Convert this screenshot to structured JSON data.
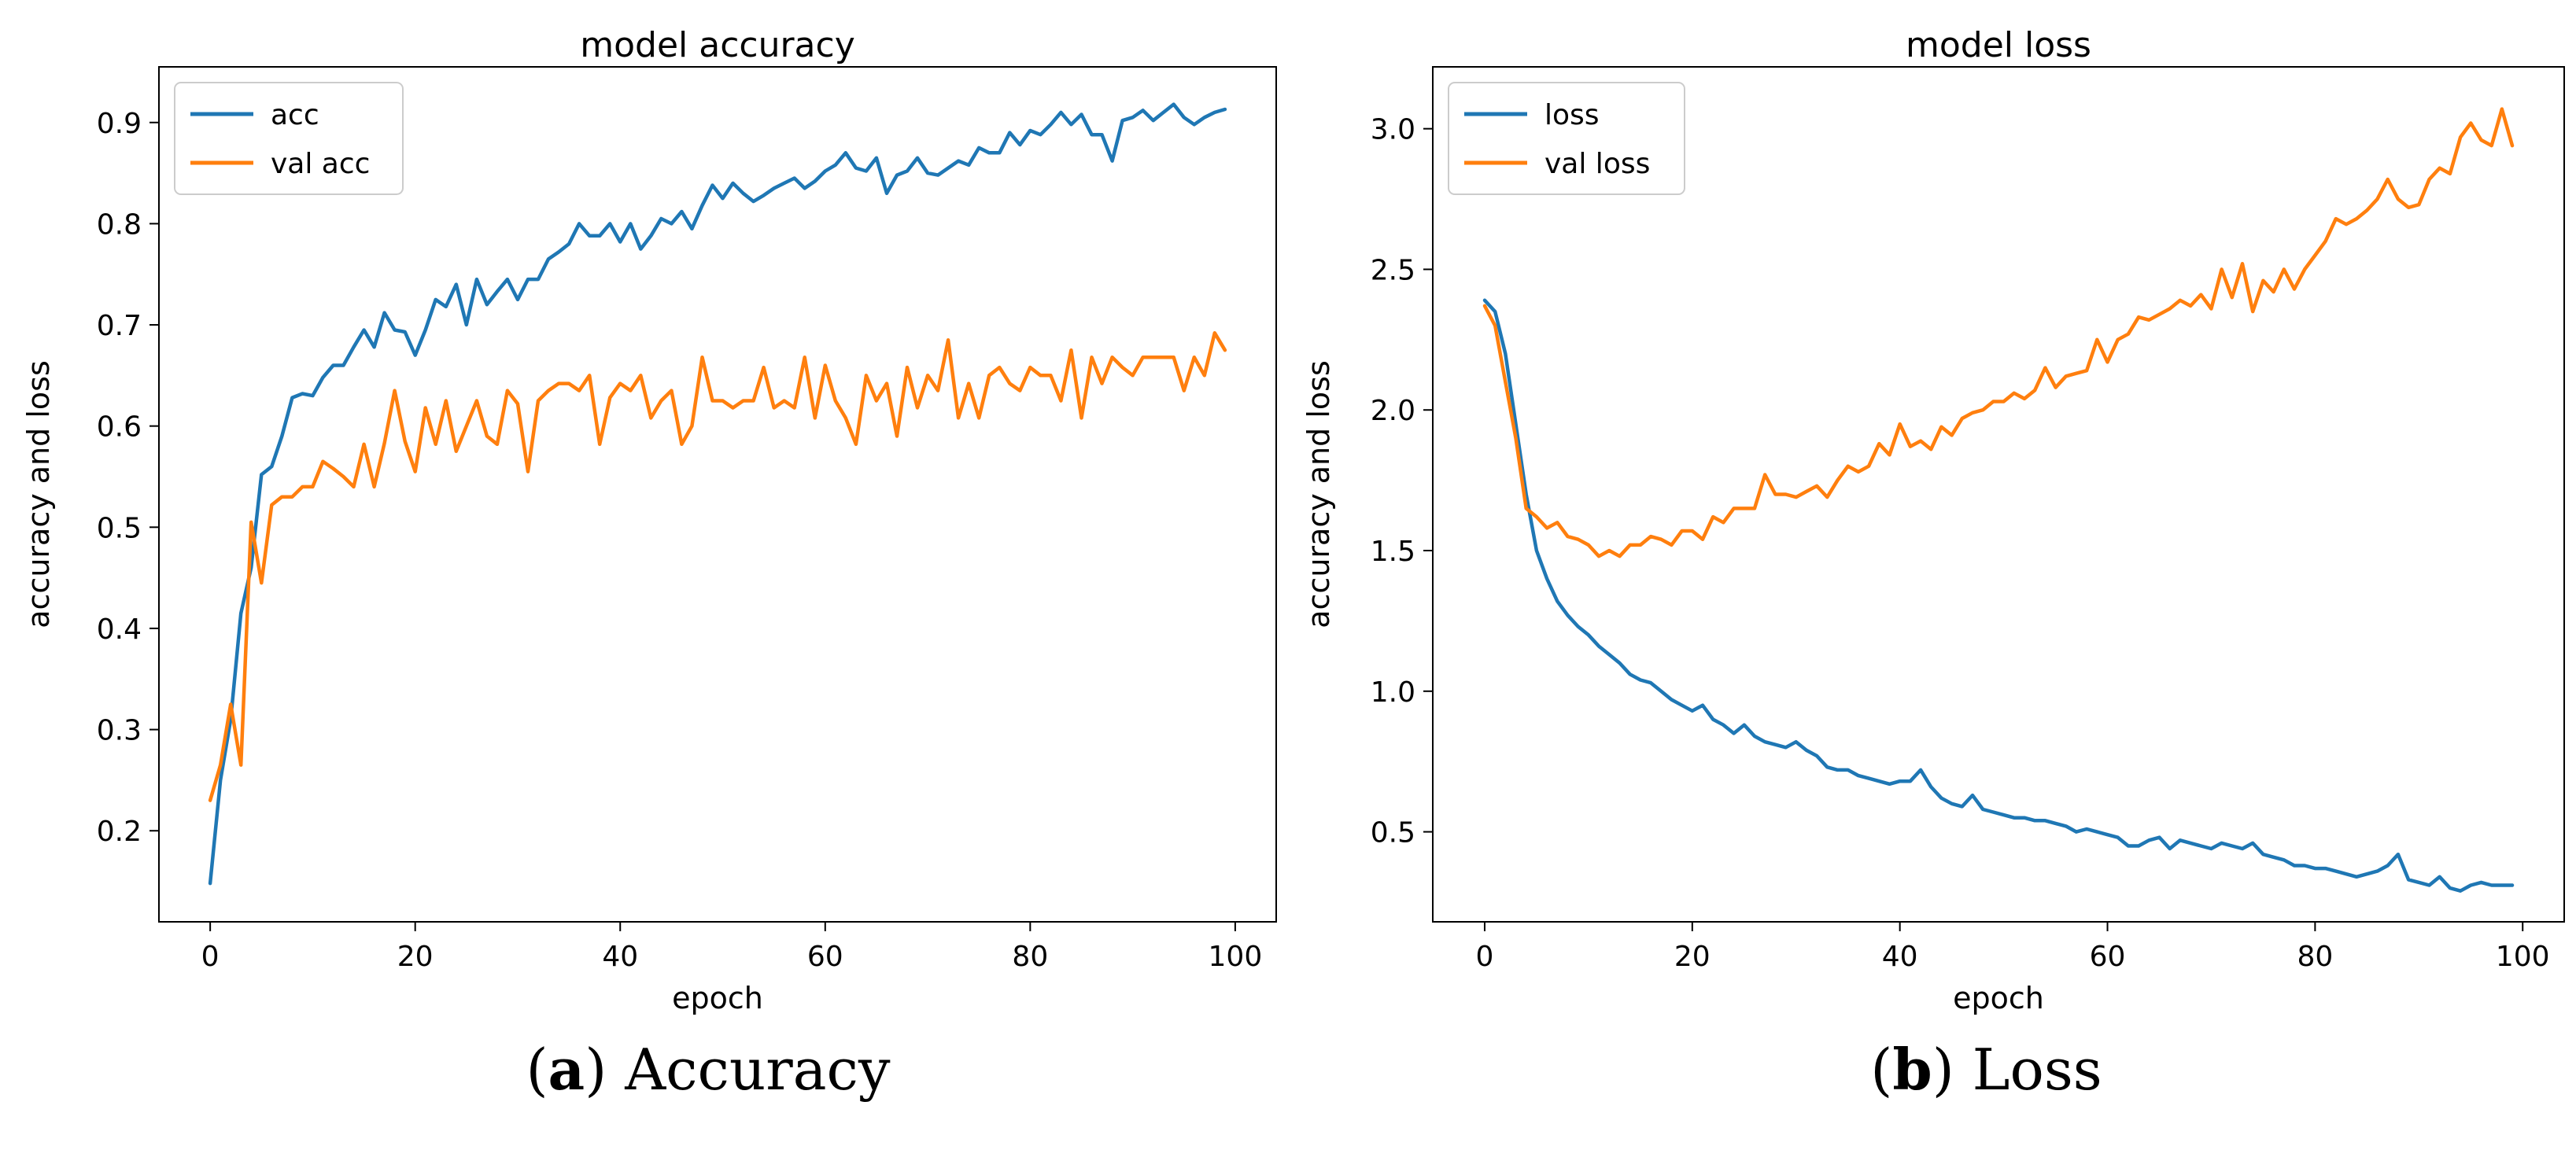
{
  "colors": {
    "acc": "#1f77b4",
    "val": "#ff7f0e"
  },
  "captions": [
    {
      "label": "a",
      "text": "Accuracy"
    },
    {
      "label": "b",
      "text": "Loss"
    }
  ],
  "chart_data": [
    {
      "type": "line",
      "title": "model accuracy",
      "xlabel": "epoch",
      "ylabel": "accuracy and loss",
      "xlim": [
        -5,
        104
      ],
      "ylim": [
        0.11,
        0.955
      ],
      "xticks": [
        0,
        20,
        40,
        60,
        80,
        100
      ],
      "yticks": [
        0.2,
        0.3,
        0.4,
        0.5,
        0.6,
        0.7,
        0.8,
        0.9
      ],
      "grid": false,
      "legend_position": "top-left",
      "series": [
        {
          "name": "acc",
          "color": "#1f77b4",
          "values": [
            0.148,
            0.25,
            0.31,
            0.415,
            0.46,
            0.552,
            0.56,
            0.59,
            0.628,
            0.632,
            0.63,
            0.648,
            0.66,
            0.66,
            0.678,
            0.695,
            0.678,
            0.712,
            0.695,
            0.693,
            0.67,
            0.695,
            0.725,
            0.718,
            0.74,
            0.7,
            0.745,
            0.72,
            0.733,
            0.745,
            0.725,
            0.745,
            0.745,
            0.765,
            0.772,
            0.78,
            0.8,
            0.788,
            0.788,
            0.8,
            0.782,
            0.8,
            0.775,
            0.788,
            0.805,
            0.8,
            0.812,
            0.795,
            0.818,
            0.838,
            0.825,
            0.84,
            0.83,
            0.822,
            0.828,
            0.835,
            0.84,
            0.845,
            0.835,
            0.842,
            0.852,
            0.858,
            0.87,
            0.855,
            0.852,
            0.865,
            0.83,
            0.848,
            0.852,
            0.865,
            0.85,
            0.848,
            0.855,
            0.862,
            0.858,
            0.875,
            0.87,
            0.87,
            0.89,
            0.878,
            0.892,
            0.888,
            0.898,
            0.91,
            0.898,
            0.908,
            0.888,
            0.888,
            0.862,
            0.902,
            0.905,
            0.912,
            0.902,
            0.91,
            0.918,
            0.905,
            0.898,
            0.905,
            0.91,
            0.913
          ]
        },
        {
          "name": "val acc",
          "color": "#ff7f0e",
          "values": [
            0.23,
            0.265,
            0.325,
            0.265,
            0.505,
            0.445,
            0.522,
            0.53,
            0.53,
            0.54,
            0.54,
            0.565,
            0.558,
            0.55,
            0.54,
            0.582,
            0.54,
            0.583,
            0.635,
            0.585,
            0.555,
            0.618,
            0.582,
            0.625,
            0.575,
            0.6,
            0.625,
            0.59,
            0.582,
            0.635,
            0.622,
            0.555,
            0.625,
            0.635,
            0.642,
            0.642,
            0.635,
            0.65,
            0.582,
            0.628,
            0.642,
            0.635,
            0.65,
            0.608,
            0.625,
            0.635,
            0.582,
            0.6,
            0.668,
            0.625,
            0.625,
            0.618,
            0.625,
            0.625,
            0.658,
            0.618,
            0.625,
            0.618,
            0.668,
            0.608,
            0.66,
            0.625,
            0.608,
            0.582,
            0.65,
            0.625,
            0.642,
            0.59,
            0.658,
            0.618,
            0.65,
            0.635,
            0.685,
            0.608,
            0.642,
            0.608,
            0.65,
            0.658,
            0.642,
            0.635,
            0.658,
            0.65,
            0.65,
            0.625,
            0.675,
            0.608,
            0.668,
            0.642,
            0.668,
            0.658,
            0.65,
            0.668,
            0.668,
            0.668,
            0.668,
            0.635,
            0.668,
            0.65,
            0.692,
            0.675
          ]
        }
      ]
    },
    {
      "type": "line",
      "title": "model loss",
      "xlabel": "epoch",
      "ylabel": "accuracy and loss",
      "xlim": [
        -5,
        104
      ],
      "ylim": [
        0.18,
        3.22
      ],
      "xticks": [
        0,
        20,
        40,
        60,
        80,
        100
      ],
      "yticks": [
        0.5,
        1.0,
        1.5,
        2.0,
        2.5,
        3.0
      ],
      "grid": false,
      "legend_position": "top-left",
      "series": [
        {
          "name": "loss",
          "color": "#1f77b4",
          "values": [
            2.39,
            2.35,
            2.2,
            1.95,
            1.7,
            1.5,
            1.4,
            1.32,
            1.27,
            1.23,
            1.2,
            1.16,
            1.13,
            1.1,
            1.06,
            1.04,
            1.03,
            1.0,
            0.97,
            0.95,
            0.93,
            0.95,
            0.9,
            0.88,
            0.85,
            0.88,
            0.84,
            0.82,
            0.81,
            0.8,
            0.82,
            0.79,
            0.77,
            0.73,
            0.72,
            0.72,
            0.7,
            0.69,
            0.68,
            0.67,
            0.68,
            0.68,
            0.72,
            0.66,
            0.62,
            0.6,
            0.59,
            0.63,
            0.58,
            0.57,
            0.56,
            0.55,
            0.55,
            0.54,
            0.54,
            0.53,
            0.52,
            0.5,
            0.51,
            0.5,
            0.49,
            0.48,
            0.45,
            0.45,
            0.47,
            0.48,
            0.44,
            0.47,
            0.46,
            0.45,
            0.44,
            0.46,
            0.45,
            0.44,
            0.46,
            0.42,
            0.41,
            0.4,
            0.38,
            0.38,
            0.37,
            0.37,
            0.36,
            0.35,
            0.34,
            0.35,
            0.36,
            0.38,
            0.42,
            0.33,
            0.32,
            0.31,
            0.34,
            0.3,
            0.29,
            0.31,
            0.32,
            0.31,
            0.31,
            0.31
          ]
        },
        {
          "name": "val loss",
          "color": "#ff7f0e",
          "values": [
            2.37,
            2.3,
            2.1,
            1.9,
            1.65,
            1.62,
            1.58,
            1.6,
            1.55,
            1.54,
            1.52,
            1.48,
            1.5,
            1.48,
            1.52,
            1.52,
            1.55,
            1.54,
            1.52,
            1.57,
            1.57,
            1.54,
            1.62,
            1.6,
            1.65,
            1.65,
            1.65,
            1.77,
            1.7,
            1.7,
            1.69,
            1.71,
            1.73,
            1.69,
            1.75,
            1.8,
            1.78,
            1.8,
            1.88,
            1.84,
            1.95,
            1.87,
            1.89,
            1.86,
            1.94,
            1.91,
            1.97,
            1.99,
            2.0,
            2.03,
            2.03,
            2.06,
            2.04,
            2.07,
            2.15,
            2.08,
            2.12,
            2.13,
            2.14,
            2.25,
            2.17,
            2.25,
            2.27,
            2.33,
            2.32,
            2.34,
            2.36,
            2.39,
            2.37,
            2.41,
            2.36,
            2.5,
            2.4,
            2.52,
            2.35,
            2.46,
            2.42,
            2.5,
            2.43,
            2.5,
            2.55,
            2.6,
            2.68,
            2.66,
            2.68,
            2.71,
            2.75,
            2.82,
            2.75,
            2.72,
            2.73,
            2.82,
            2.86,
            2.84,
            2.97,
            3.02,
            2.96,
            2.94,
            3.07,
            2.94
          ]
        }
      ]
    }
  ]
}
